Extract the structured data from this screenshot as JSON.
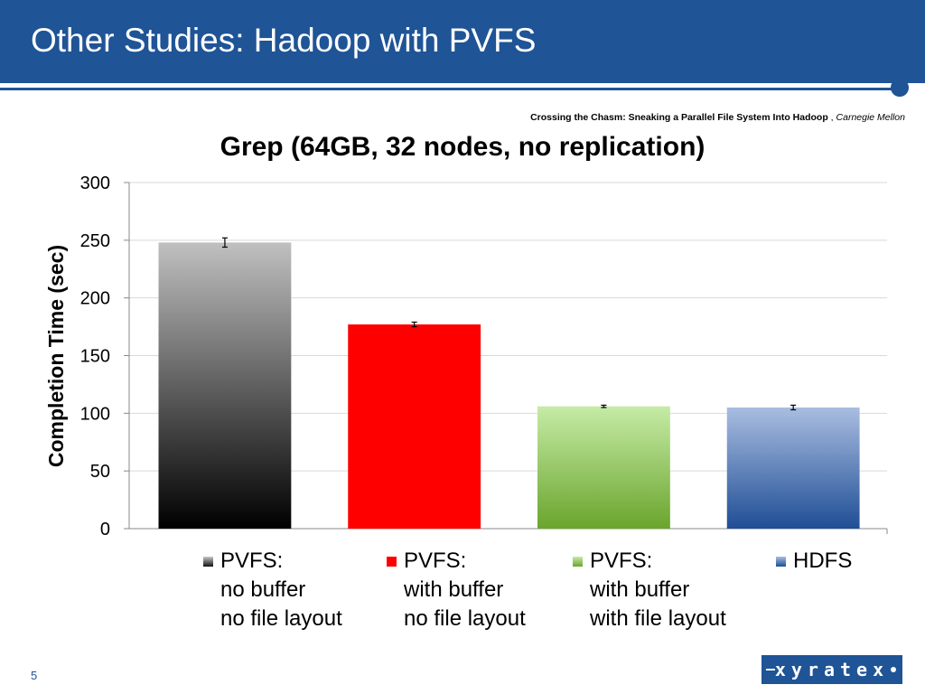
{
  "slide": {
    "title": "Other Studies: Hadoop with PVFS",
    "citation_bold": "Crossing the Chasm: Sneaking a Parallel File System Into Hadoop",
    "citation_sep": " , ",
    "citation_italic": "Carnegie Mellon",
    "page_number": "5",
    "logo_text": "xyratex"
  },
  "colors": {
    "header": "#1f5496",
    "grid": "#d9d9d9",
    "axis": "#888888"
  },
  "chart_data": {
    "type": "bar",
    "title": "Grep (64GB, 32 nodes, no replication)",
    "ylabel": "Completion Time (sec)",
    "xlabel": "",
    "ylim": [
      0,
      300
    ],
    "yticks": [
      0,
      50,
      100,
      150,
      200,
      250,
      300
    ],
    "grid": true,
    "legend_position": "bottom",
    "series": [
      {
        "name": "PVFS: no buffer no file layout",
        "legend_lines": [
          "PVFS:",
          "no buffer",
          "no file layout"
        ],
        "value": 248,
        "error": 4,
        "gradient": [
          "#c0c0c0",
          "#000000"
        ],
        "swatch": [
          "#c8c8c8",
          "#111111"
        ]
      },
      {
        "name": "PVFS: with buffer no file layout",
        "legend_lines": [
          "PVFS:",
          "with buffer",
          "no file layout"
        ],
        "value": 177,
        "error": 2,
        "gradient": [
          "#ff0000",
          "#ff0000"
        ],
        "swatch": [
          "#ff0000",
          "#ff0000"
        ]
      },
      {
        "name": "PVFS: with buffer with file layout",
        "legend_lines": [
          "PVFS:",
          "with buffer",
          "with file layout"
        ],
        "value": 106,
        "error": 1,
        "gradient": [
          "#c6eba6",
          "#6aa52d"
        ],
        "swatch": [
          "#c6eba6",
          "#6aa52d"
        ]
      },
      {
        "name": "HDFS",
        "legend_lines": [
          "HDFS"
        ],
        "value": 105,
        "error": 2,
        "gradient": [
          "#a9bde0",
          "#1f4e96"
        ],
        "swatch": [
          "#a9bde0",
          "#1f4e96"
        ]
      }
    ]
  }
}
